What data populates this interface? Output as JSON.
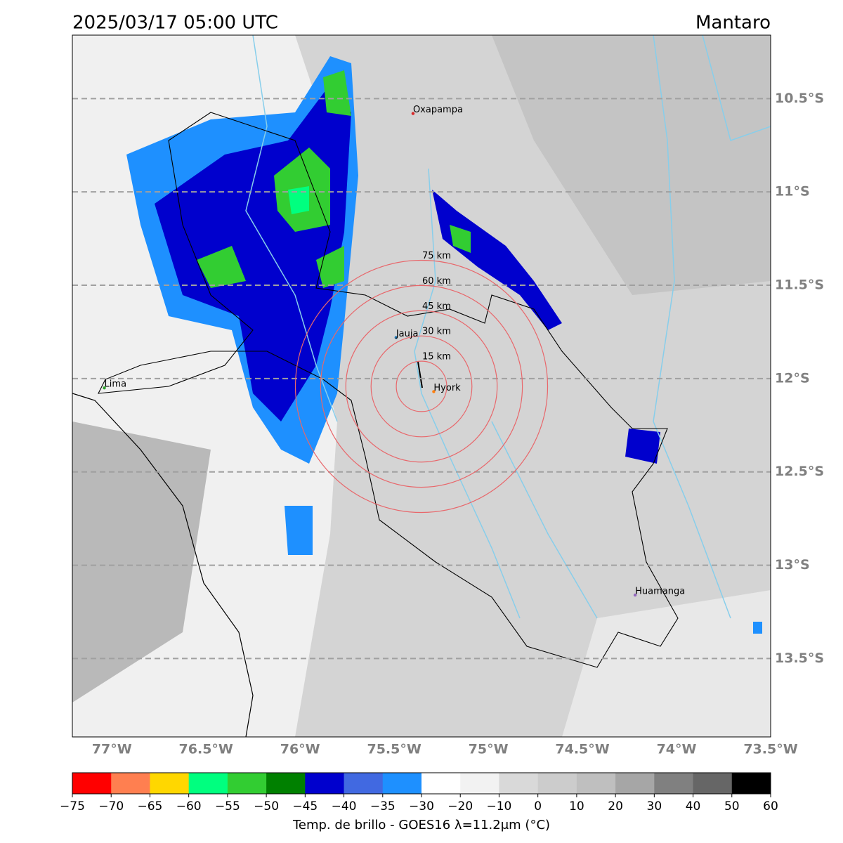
{
  "chart_data": {
    "type": "map",
    "title": "2025/03/17 05:00 UTC",
    "region": "Mantaro",
    "xlim": [
      -77.21,
      -73.5
    ],
    "ylim": [
      -13.92,
      -10.16
    ],
    "xticks": [
      {
        "value": -77,
        "label": "77°W"
      },
      {
        "value": -76.5,
        "label": "76.5°W"
      },
      {
        "value": -76,
        "label": "76°W"
      },
      {
        "value": -75.5,
        "label": "75.5°W"
      },
      {
        "value": -75,
        "label": "75°W"
      },
      {
        "value": -74.5,
        "label": "74.5°W"
      },
      {
        "value": -74,
        "label": "74°W"
      },
      {
        "value": -73.5,
        "label": "73.5°W"
      }
    ],
    "yticks": [
      {
        "value": -10.5,
        "label": "10.5°S"
      },
      {
        "value": -11,
        "label": "11°S"
      },
      {
        "value": -11.5,
        "label": "11.5°S"
      },
      {
        "value": -12,
        "label": "12°S"
      },
      {
        "value": -12.5,
        "label": "12.5°S"
      },
      {
        "value": -13,
        "label": "13°S"
      },
      {
        "value": -13.5,
        "label": "13.5°S"
      }
    ],
    "grid": true,
    "places": [
      {
        "name": "Oxapampa",
        "lon": -75.4,
        "lat": -10.58,
        "color": "#d62728"
      },
      {
        "name": "Jauja",
        "lon": -75.49,
        "lat": -11.78,
        "color": "#1f77b4"
      },
      {
        "name": "Hyork",
        "lon": -75.29,
        "lat": -12.07,
        "color": "#ff7f0e"
      },
      {
        "name": "Lima",
        "lon": -77.04,
        "lat": -12.05,
        "color": "#2ca02c"
      },
      {
        "name": "Huamanga",
        "lon": -74.22,
        "lat": -13.16,
        "color": "#9467bd"
      }
    ],
    "rings": [
      {
        "value": 15,
        "label": "15 km"
      },
      {
        "value": 30,
        "label": "30 km"
      },
      {
        "value": 45,
        "label": "45 km"
      },
      {
        "value": 60,
        "label": "60 km"
      },
      {
        "value": 75,
        "label": "75 km"
      }
    ],
    "colorbar": {
      "label": "Temp. de brillo - GOES16 λ=11.2μm (°C)",
      "bins": [
        {
          "value": -75,
          "label": "−75"
        },
        {
          "value": -70,
          "label": "−70"
        },
        {
          "value": -65,
          "label": "−65"
        },
        {
          "value": -60,
          "label": "−60"
        },
        {
          "value": -55,
          "label": "−55"
        },
        {
          "value": -50,
          "label": "−50"
        },
        {
          "value": -45,
          "label": "−45"
        },
        {
          "value": -40,
          "label": "−40"
        },
        {
          "value": -35,
          "label": "−35"
        },
        {
          "value": -30,
          "label": "−30"
        },
        {
          "value": -20,
          "label": "−20"
        },
        {
          "value": -10,
          "label": "−10"
        },
        0,
        10,
        20,
        30,
        40,
        50,
        60
      ],
      "colors": [
        "#ff0000",
        "#ff7f50",
        "#ffd700",
        "#00ff7f",
        "#32cd32",
        "#008000",
        "#0000cd",
        "#4169e1",
        "#1e90ff",
        "#ffffff",
        "#f2f2f2",
        "#d9d9d9",
        "#cccccc",
        "#bfbfbf",
        "#a6a6a6",
        "#808080",
        "#666666",
        "#000000"
      ]
    }
  }
}
